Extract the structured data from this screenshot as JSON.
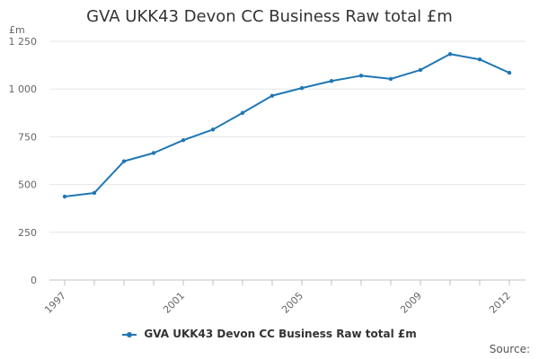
{
  "title": "GVA UKK43 Devon CC Business Raw total £m",
  "source_label": "Source:",
  "chart_data": {
    "type": "line",
    "title": "GVA UKK43 Devon CC Business Raw total £m",
    "ylabel": "£m",
    "xlabel": "",
    "x": [
      1997,
      1998,
      1999,
      2000,
      2001,
      2002,
      2003,
      2004,
      2005,
      2006,
      2007,
      2008,
      2009,
      2010,
      2011,
      2012
    ],
    "x_tick_labels": [
      "1997",
      "2001",
      "2005",
      "2009",
      "2012"
    ],
    "y_tick_labels": [
      "0",
      "250",
      "500",
      "750",
      "1 000",
      "1 250"
    ],
    "y_ticks": [
      0,
      250,
      500,
      750,
      1000,
      1250
    ],
    "ylim": [
      0,
      1250
    ],
    "grid": true,
    "legend_position": "bottom",
    "series": [
      {
        "name": "GVA UKK43 Devon CC Business Raw total £m",
        "color": "#1f77b4",
        "values": [
          437,
          456,
          622,
          665,
          732,
          788,
          875,
          965,
          1005,
          1042,
          1070,
          1053,
          1100,
          1183,
          1155,
          1085
        ]
      }
    ]
  }
}
